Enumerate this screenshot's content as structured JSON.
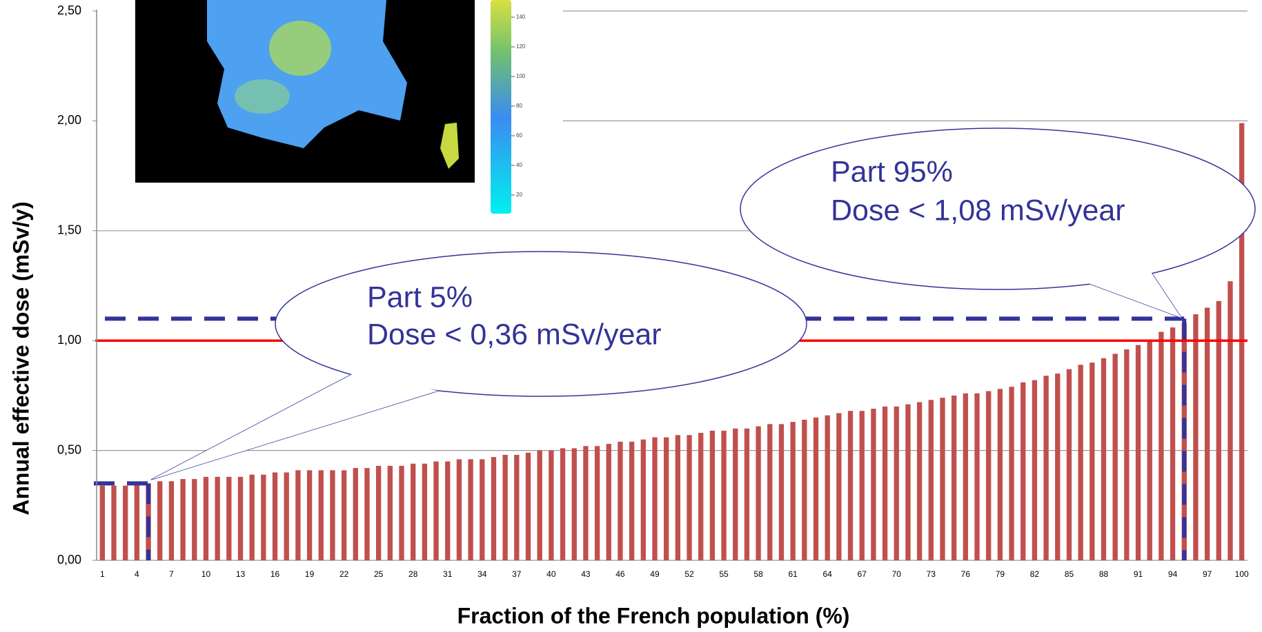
{
  "chart_data": {
    "type": "bar",
    "y_label": "Annual effective dose (mSv/y)",
    "x_label": "Fraction of the French population (%)",
    "categories": [
      1,
      null,
      null,
      4,
      null,
      null,
      7,
      null,
      null,
      10,
      null,
      null,
      13,
      null,
      null,
      16,
      null,
      null,
      19,
      null,
      null,
      22,
      null,
      null,
      25,
      null,
      null,
      28,
      null,
      null,
      31,
      null,
      null,
      34,
      null,
      null,
      37,
      null,
      null,
      40,
      null,
      null,
      43,
      null,
      null,
      46,
      null,
      null,
      49,
      null,
      null,
      52,
      null,
      null,
      55,
      null,
      null,
      58,
      null,
      null,
      61,
      null,
      null,
      64,
      null,
      null,
      67,
      null,
      null,
      70,
      null,
      null,
      73,
      null,
      null,
      76,
      null,
      null,
      79,
      null,
      null,
      82,
      null,
      null,
      85,
      null,
      null,
      88,
      null,
      null,
      91,
      null,
      null,
      94,
      null,
      null,
      97,
      null,
      null,
      100
    ],
    "values": [
      0.34,
      0.34,
      0.34,
      0.35,
      0.35,
      0.36,
      0.36,
      0.37,
      0.37,
      0.38,
      0.38,
      0.38,
      0.38,
      0.39,
      0.39,
      0.4,
      0.4,
      0.41,
      0.41,
      0.41,
      0.41,
      0.41,
      0.42,
      0.42,
      0.43,
      0.43,
      0.43,
      0.44,
      0.44,
      0.45,
      0.45,
      0.46,
      0.46,
      0.46,
      0.47,
      0.48,
      0.48,
      0.49,
      0.5,
      0.5,
      0.51,
      0.51,
      0.52,
      0.52,
      0.53,
      0.54,
      0.54,
      0.55,
      0.56,
      0.56,
      0.57,
      0.57,
      0.58,
      0.59,
      0.59,
      0.6,
      0.6,
      0.61,
      0.62,
      0.62,
      0.63,
      0.64,
      0.65,
      0.66,
      0.67,
      0.68,
      0.68,
      0.69,
      0.7,
      0.7,
      0.71,
      0.72,
      0.73,
      0.74,
      0.75,
      0.76,
      0.76,
      0.77,
      0.78,
      0.79,
      0.81,
      0.82,
      0.84,
      0.85,
      0.87,
      0.89,
      0.9,
      0.92,
      0.94,
      0.96,
      0.98,
      1.0,
      1.04,
      1.06,
      1.08,
      1.12,
      1.15,
      1.18,
      1.27,
      1.99
    ],
    "color": "#c0504d",
    "ylim": [
      0,
      2.5
    ],
    "yticks": [
      {
        "value": 0,
        "label": "0,00"
      },
      {
        "value": 0.5,
        "label": "0,50"
      },
      {
        "value": 1,
        "label": "1,00"
      },
      {
        "value": 1.5,
        "label": "1,50"
      },
      {
        "value": 2,
        "label": "2,00"
      },
      {
        "value": 2.5,
        "label": "2,50"
      }
    ],
    "grid": true,
    "reference_line": {
      "value": 1,
      "color": "#ff0000"
    },
    "markers": [
      {
        "category": 5,
        "y": 0.35,
        "color": "#333399"
      },
      {
        "category": 95,
        "y": 1.1,
        "color": "#333399"
      }
    ],
    "annotations": [
      {
        "lines": [
          "Part  5%",
          "Dose < 0,36 mSv/year"
        ]
      },
      {
        "lines": [
          "Part  95%",
          "Dose < 1,08 mSv/year"
        ]
      }
    ],
    "inset_scale_labels": [
      "140",
      "120",
      "100",
      "80",
      "60",
      "40",
      "20"
    ]
  }
}
